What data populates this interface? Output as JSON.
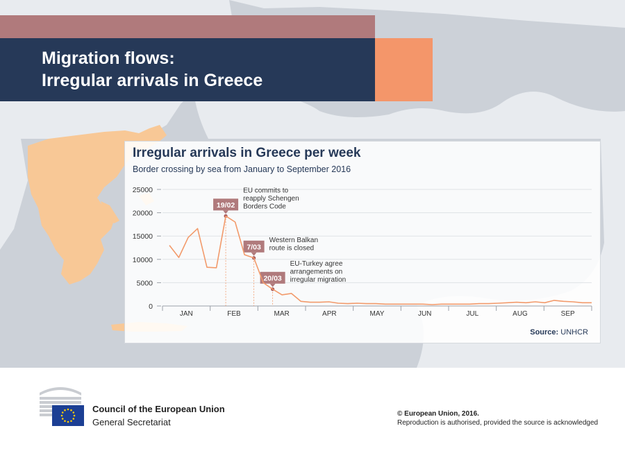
{
  "header": {
    "title_line1": "Migration flows:",
    "title_line2": "Irregular arrivals in Greece"
  },
  "colors": {
    "header_navy": "#263958",
    "header_stripe": "#b07a7c",
    "header_accent": "#f4966a",
    "line": "#f29a6b",
    "annotation_box": "#b07a7c",
    "greece_land": "#f8c896"
  },
  "chart_data": {
    "type": "line",
    "title": "Irregular arrivals in Greece per week",
    "subtitle": "Border crossing by sea from January to September 2016",
    "xlabel": "",
    "ylabel": "",
    "ylim": [
      0,
      25000
    ],
    "yticks": [
      "25000",
      "20000",
      "15000",
      "10000",
      "5000",
      "0"
    ],
    "ytick_values": [
      25000,
      20000,
      15000,
      10000,
      5000,
      0
    ],
    "months": [
      "JAN",
      "FEB",
      "MAR",
      "APR",
      "MAY",
      "JUN",
      "JUL",
      "AUG",
      "SEP"
    ],
    "grid": true,
    "series": [
      {
        "values": [
          13000,
          10400,
          14700,
          16600,
          8300,
          8200,
          19300,
          18000,
          11000,
          10300,
          5000,
          3600,
          2400,
          2700,
          1000,
          800,
          800,
          900,
          600,
          500,
          600,
          500,
          500,
          400,
          400,
          400,
          400,
          400,
          300,
          400,
          400,
          400,
          400,
          500,
          500,
          600,
          700,
          800,
          700,
          900,
          700,
          1200,
          1000,
          900,
          700,
          700
        ]
      }
    ],
    "annotations": [
      {
        "label": "19/02",
        "point_index": 6,
        "text": [
          "EU commits to",
          "reapply Schengen",
          "Borders Code"
        ]
      },
      {
        "label": "7/03",
        "point_index": 9,
        "text": [
          "Western Balkan",
          "route is closed"
        ]
      },
      {
        "label": "20/03",
        "point_index": 11,
        "text": [
          "EU-Turkey agree",
          "arrangements on",
          "irregular migration"
        ]
      }
    ],
    "source_label": "Source:",
    "source_value": "UNHCR"
  },
  "footer": {
    "org_name": "Council of the European Union",
    "org_sub": "General Secretariat",
    "copyright": "© European Union, 2016.",
    "reproduction": "Reproduction is authorised, provided the source is acknowledged"
  }
}
